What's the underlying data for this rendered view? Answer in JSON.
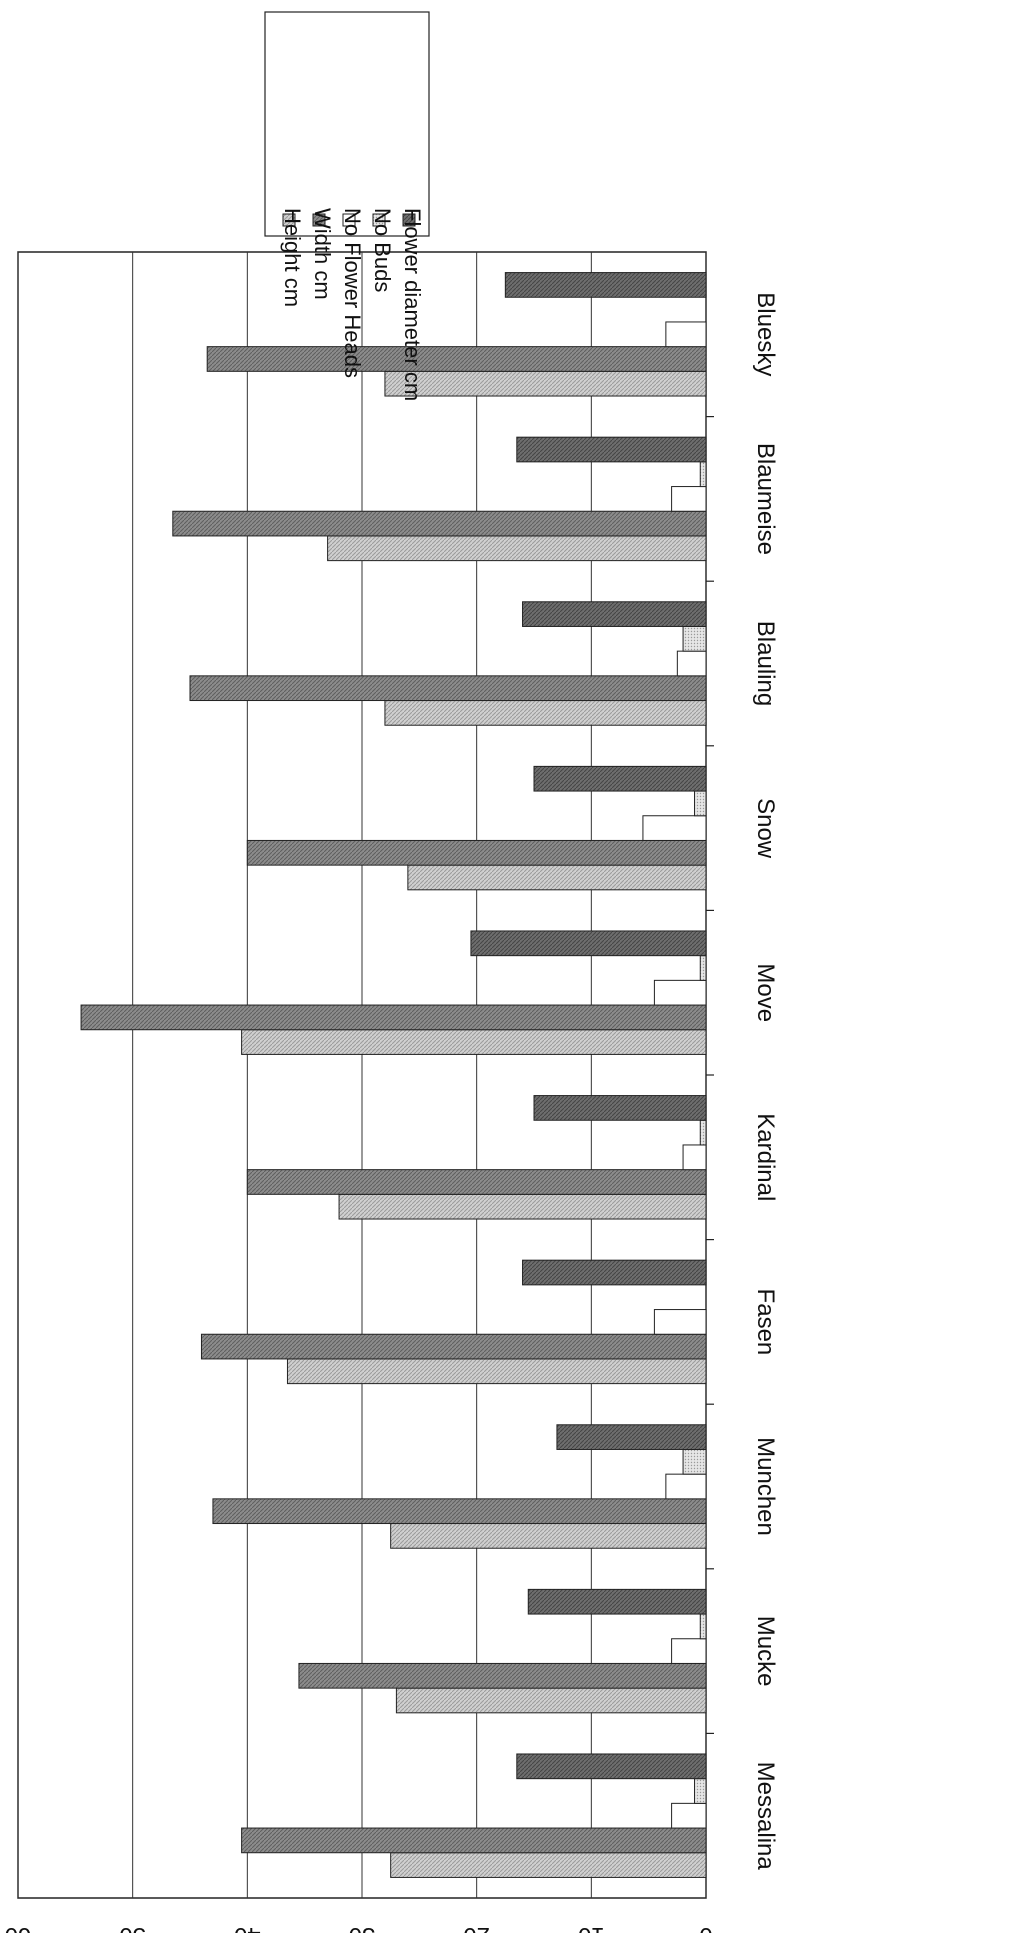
{
  "chart_data": {
    "type": "bar",
    "orientation": "horizontal",
    "rotated": "180deg (upside-down scan)",
    "title": "",
    "xlabel": "",
    "ylabel": "",
    "value_axis": {
      "min": 0,
      "max": 60,
      "ticks": [
        "0",
        "10",
        "20",
        "30",
        "40",
        "50",
        "60"
      ]
    },
    "grid": true,
    "legend_position": "top-left",
    "categories": [
      "Messalina",
      "Mucke",
      "Munchen",
      "Fasen",
      "Kardinal",
      "Move",
      "Snow",
      "Blauling",
      "Blaumeise",
      "Bluesky"
    ],
    "series": [
      {
        "name": "Height cm",
        "color": "#c8c8c8",
        "values": [
          27.5,
          27,
          27.5,
          36.5,
          32,
          40.5,
          26,
          28,
          33,
          28
        ]
      },
      {
        "name": "Width cm",
        "color": "#8a8a8a",
        "values": [
          40.5,
          35.5,
          43,
          44,
          40,
          54.5,
          40,
          45,
          46.5,
          43.5
        ]
      },
      {
        "name": "No Flower Heads",
        "color": "#ffffff",
        "values": [
          3,
          3,
          3.5,
          4.5,
          2,
          4.5,
          5.5,
          2.5,
          3,
          3.5
        ]
      },
      {
        "name": "No Buds",
        "color": "#d8d8d8",
        "values": [
          1,
          0.5,
          2,
          0,
          0.5,
          0.5,
          1,
          2,
          0.5,
          0
        ]
      },
      {
        "name": "Flower diameter cm",
        "color": "#707070",
        "values": [
          16.5,
          15.5,
          13,
          16,
          15,
          20.5,
          15,
          16,
          16.5,
          17.5
        ]
      }
    ]
  }
}
